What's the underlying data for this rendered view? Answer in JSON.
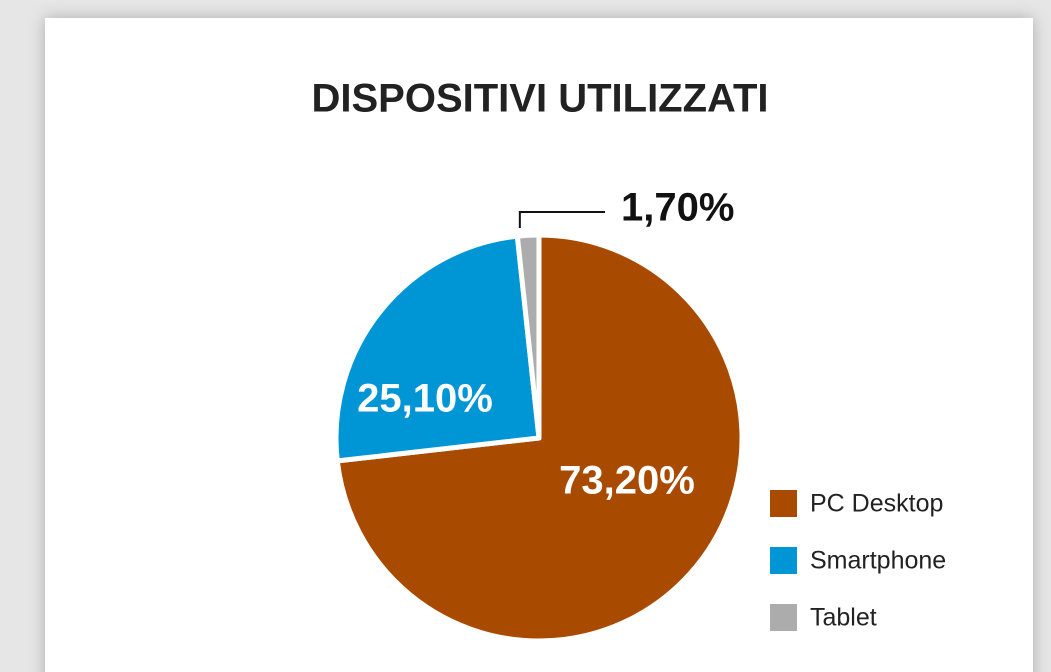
{
  "chart_data": {
    "type": "pie",
    "title": "DISPOSITIVI UTILIZZATI",
    "categories": [
      "PC Desktop",
      "Smartphone",
      "Tablet"
    ],
    "values": [
      73.2,
      25.1,
      1.7
    ],
    "value_labels": [
      "73,20%",
      "25,10%",
      "1,70%"
    ],
    "colors": [
      "#a84b00",
      "#0095d5",
      "#acacac"
    ],
    "legend": "right"
  }
}
